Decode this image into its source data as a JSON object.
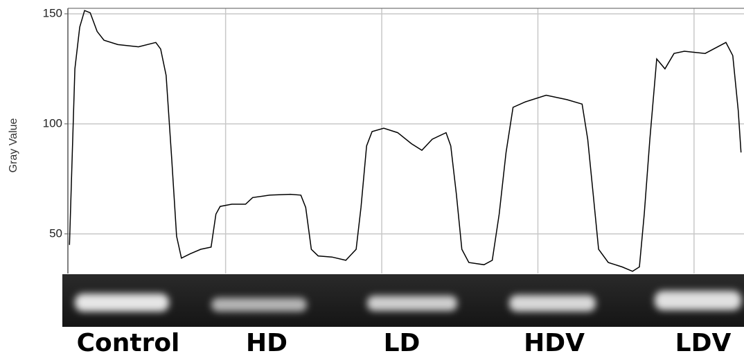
{
  "chart_data": {
    "type": "line",
    "y_label": "Gray Value",
    "x": [
      0,
      3.5,
      6.6,
      9.7,
      13.3,
      17.7,
      22.1,
      31,
      44.2,
      55.3,
      58.4,
      61.9,
      65.5,
      68.6,
      71.7,
      77.4,
      84.1,
      90.7,
      93.8,
      96.5,
      104,
      112.8,
      117.3,
      128.3,
      141.6,
      148.2,
      151.3,
      154.9,
      159.3,
      168.1,
      177,
      183.6,
      186.7,
      190.3,
      193.8,
      201.3,
      210.2,
      219,
      225.7,
      232.3,
      241.2,
      244.2,
      247.8,
      251.3,
      255.8,
      265.5,
      270.8,
      275.2,
      279.6,
      284.1,
      292,
      305.3,
      318.6,
      328.3,
      331.9,
      335.4,
      338.9,
      345.1,
      354,
      360.6,
      365,
      368.1,
      371.7,
      376.1,
      381.4,
      387.2,
      393.8,
      407.1,
      420.4,
      424.8,
      428.3,
      430.1
    ],
    "values": [
      45,
      125,
      144,
      151.5,
      150.5,
      142,
      138,
      136,
      135,
      137,
      134,
      122,
      84,
      49,
      39,
      41,
      43,
      44,
      59,
      62.5,
      63.5,
      63.5,
      66.5,
      67.6,
      68,
      67.6,
      62,
      43,
      40,
      39.5,
      38,
      43,
      62,
      90,
      96.5,
      98,
      96,
      91,
      88,
      93,
      96,
      90,
      68,
      43,
      37,
      36,
      38,
      59,
      87,
      107.5,
      110,
      113,
      111,
      109,
      93,
      68,
      43,
      37,
      35,
      33,
      35,
      59,
      93,
      129.5,
      125,
      132,
      133,
      132,
      137,
      131,
      106,
      87
    ],
    "color": "#000000",
    "xlim": [
      -1,
      432
    ],
    "xticks": [
      100,
      200,
      300,
      400
    ],
    "ylim": [
      32,
      152.5
    ],
    "yticks": [
      50,
      100,
      150
    ],
    "grid": true,
    "lanes": [
      "Control",
      "HD",
      "LD",
      "HDV",
      "LDV"
    ]
  }
}
